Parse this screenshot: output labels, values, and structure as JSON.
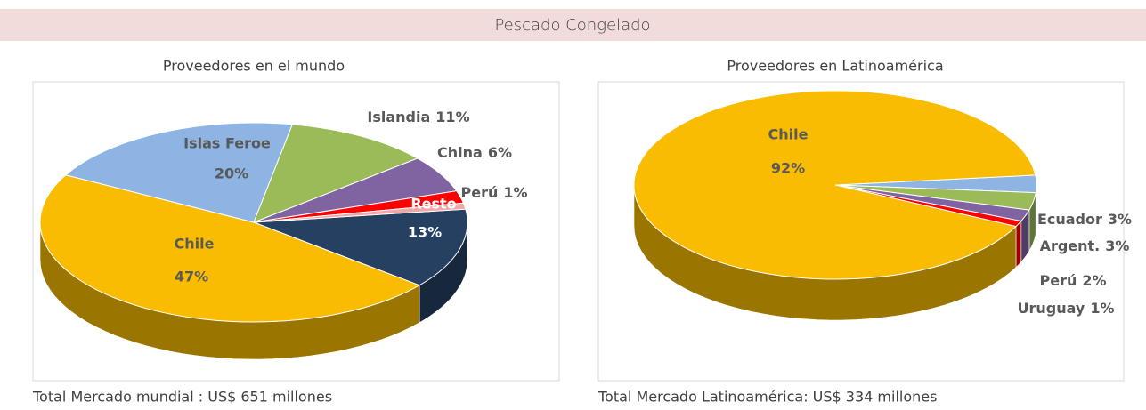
{
  "header": {
    "title": "Pescado Congelado"
  },
  "chart_data": [
    {
      "type": "pie3d",
      "title": "Proveedores en el mundo",
      "categories": [
        "Resto",
        "Chile",
        "Islas Feroe",
        "Islandia",
        "China",
        null,
        "Perú"
      ],
      "values": [
        13,
        47,
        20,
        11,
        6,
        2,
        1
      ],
      "value_labels": [
        "13%",
        "47%",
        "20%",
        "11%",
        "6%",
        null,
        "1%"
      ],
      "colors": [
        "#254061",
        "#f9bc00",
        "#8db4e2",
        "#9bbb59",
        "#8064a2",
        "#ff0000",
        "#f2a6a6"
      ],
      "footnote": "Total Mercado mundial  : US$ 651 millones"
    },
    {
      "type": "pie3d",
      "title": "Proveedores en Latinoamérica",
      "categories": [
        "Ecuador",
        "Argent.",
        "Perú",
        "Uruguay",
        "Chile"
      ],
      "values": [
        3,
        3,
        2,
        1,
        92
      ],
      "value_labels": [
        "3%",
        "3%",
        "2%",
        "1%",
        "92%"
      ],
      "colors": [
        "#8db4e2",
        "#9bbb59",
        "#8064a2",
        "#ff0000",
        "#f9bc00"
      ],
      "footnote": "Total Mercado Latinoamérica: US$ 334 millones"
    }
  ]
}
